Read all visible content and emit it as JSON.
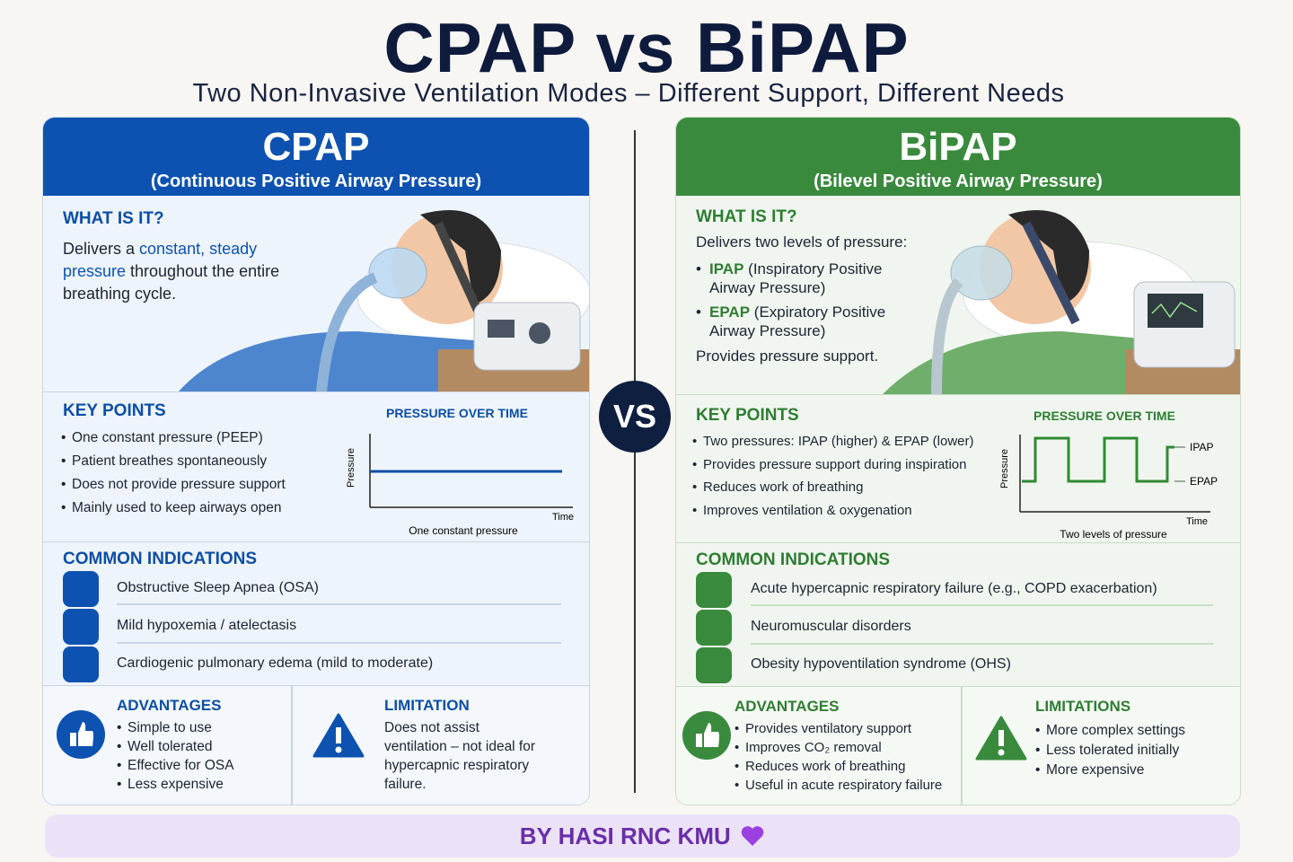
{
  "header": {
    "title": "CPAP vs BiPAP",
    "subtitle": "Two Non-Invasive Ventilation Modes – Different Support, Different Needs"
  },
  "vs": "VS",
  "cpap": {
    "name": "CPAP",
    "full_name": "(Continuous Positive Airway Pressure)",
    "what_heading": "WHAT IS IT?",
    "what_text": [
      "Delivers a ",
      "constant, steady pressure",
      " throughout the entire breathing cycle."
    ],
    "key_heading": "KEY POINTS",
    "key_points": [
      "One constant pressure (PEEP)",
      "Patient breathes spontaneously",
      "Does not provide pressure support",
      "Mainly used to keep airways open"
    ],
    "graph": {
      "title": "PRESSURE OVER TIME",
      "y_label": "Pressure",
      "x_label": "Time",
      "caption": "One constant pressure"
    },
    "indications_heading": "COMMON INDICATIONS",
    "indications": [
      "Obstructive Sleep Apnea (OSA)",
      "Mild hypoxemia / atelectasis",
      "Cardiogenic pulmonary edema (mild to moderate)"
    ],
    "advantages_heading": "ADVANTAGES",
    "advantages": [
      "Simple to use",
      "Well tolerated",
      "Effective for OSA",
      "Less expensive"
    ],
    "limitation_heading": "LIMITATION",
    "limitation_text": "Does not assist ventilation – not ideal for hypercapnic respiratory failure."
  },
  "bipap": {
    "name": "BiPAP",
    "full_name": "(Bilevel Positive Airway Pressure)",
    "what_heading": "WHAT IS IT?",
    "what_text": "Delivers two levels of pressure:",
    "what_items": [
      {
        "term": "IPAP",
        "desc": "(Inspiratory Positive Airway Pressure)"
      },
      {
        "term": "EPAP",
        "desc": "(Expiratory Positive Airway Pressure)"
      }
    ],
    "what_footer": "Provides pressure support.",
    "key_heading": "KEY POINTS",
    "key_points": [
      "Two pressures: IPAP (higher) & EPAP (lower)",
      "Provides pressure support during inspiration",
      "Reduces work of breathing",
      "Improves ventilation & oxygenation"
    ],
    "graph": {
      "title": "PRESSURE OVER TIME",
      "y_label": "Pressure",
      "x_label": "Time",
      "caption": "Two levels of pressure",
      "high_label": "IPAP",
      "low_label": "EPAP"
    },
    "indications_heading": "COMMON INDICATIONS",
    "indications": [
      "Acute hypercapnic respiratory failure (e.g., COPD exacerbation)",
      "Neuromuscular disorders",
      "Obesity hypoventilation syndrome (OHS)"
    ],
    "advantages_heading": "ADVANTAGES",
    "advantages": [
      "Provides ventilatory support",
      "Improves CO₂ removal",
      "Reduces work of breathing",
      "Useful in acute respiratory failure"
    ],
    "limitations_heading": "LIMITATIONS",
    "limitations": [
      "More complex settings",
      "Less tolerated initially",
      "More expensive"
    ]
  },
  "footer": "BY HASI RNC KMU"
}
